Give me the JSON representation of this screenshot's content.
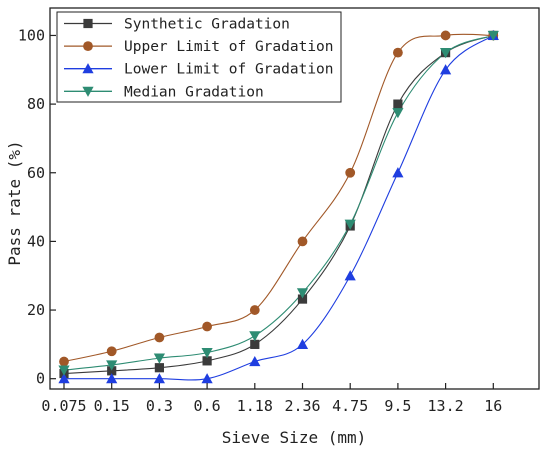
{
  "chart_data": {
    "type": "line",
    "xlabel": "Sieve Size (mm)",
    "ylabel": "Pass rate (%)",
    "categories": [
      "0.075",
      "0.15",
      "0.3",
      "0.6",
      "1.18",
      "2.36",
      "4.75",
      "9.5",
      "13.2",
      "16"
    ],
    "ylim": [
      -3,
      108
    ],
    "yticks": [
      0,
      20,
      40,
      60,
      80,
      100
    ],
    "grid": false,
    "legend_position": "top-left",
    "series": [
      {
        "name": "Synthetic Gradation",
        "marker": "square",
        "color": "#3b3b3b",
        "values": [
          1.5,
          2.3,
          3.2,
          5.2,
          10,
          23.2,
          44.5,
          80,
          95,
          100
        ]
      },
      {
        "name": "Upper Limit of Gradation",
        "marker": "circle",
        "color": "#a15828",
        "values": [
          5,
          8,
          12,
          15.2,
          20,
          40,
          60,
          95,
          100,
          100
        ]
      },
      {
        "name": "Lower Limit of Gradation",
        "marker": "triangle-up",
        "color": "#1f3ee0",
        "values": [
          0,
          0,
          0,
          0,
          5,
          10,
          30,
          60,
          90,
          100
        ]
      },
      {
        "name": "Median Gradation",
        "marker": "triangle-down",
        "color": "#2e8c73",
        "values": [
          2.5,
          4,
          6,
          7.6,
          12.5,
          25,
          45,
          77.5,
          95,
          100
        ]
      }
    ]
  }
}
